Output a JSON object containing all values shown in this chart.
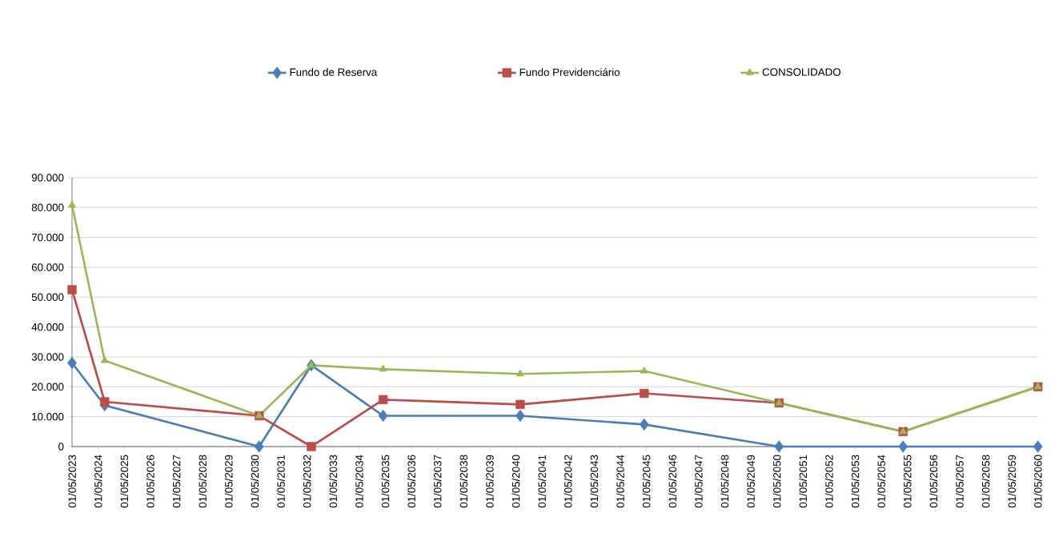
{
  "chart_data": {
    "type": "line",
    "xlim": [
      "2023-05-01",
      "2060-05-01"
    ],
    "xticks": [
      {
        "value": "2023-05-01",
        "label": "01/05/2023"
      },
      {
        "value": "2024-05-01",
        "label": "01/05/2024"
      },
      {
        "value": "2025-05-01",
        "label": "01/05/2025"
      },
      {
        "value": "2026-05-01",
        "label": "01/05/2026"
      },
      {
        "value": "2027-05-01",
        "label": "01/05/2027"
      },
      {
        "value": "2028-05-01",
        "label": "01/05/2028"
      },
      {
        "value": "2029-05-01",
        "label": "01/05/2029"
      },
      {
        "value": "2030-05-01",
        "label": "01/05/2030"
      },
      {
        "value": "2031-05-01",
        "label": "01/05/2031"
      },
      {
        "value": "2032-05-01",
        "label": "01/05/2032"
      },
      {
        "value": "2033-05-01",
        "label": "01/05/2033"
      },
      {
        "value": "2034-05-01",
        "label": "01/05/2034"
      },
      {
        "value": "2035-05-01",
        "label": "01/05/2035"
      },
      {
        "value": "2036-05-01",
        "label": "01/05/2036"
      },
      {
        "value": "2037-05-01",
        "label": "01/05/2037"
      },
      {
        "value": "2038-05-01",
        "label": "01/05/2038"
      },
      {
        "value": "2039-05-01",
        "label": "01/05/2039"
      },
      {
        "value": "2040-05-01",
        "label": "01/05/2040"
      },
      {
        "value": "2041-05-01",
        "label": "01/05/2041"
      },
      {
        "value": "2042-05-01",
        "label": "01/05/2042"
      },
      {
        "value": "2043-05-01",
        "label": "01/05/2043"
      },
      {
        "value": "2044-05-01",
        "label": "01/05/2044"
      },
      {
        "value": "2045-05-01",
        "label": "01/05/2045"
      },
      {
        "value": "2046-05-01",
        "label": "01/05/2046"
      },
      {
        "value": "2047-05-01",
        "label": "01/05/2047"
      },
      {
        "value": "2048-05-01",
        "label": "01/05/2048"
      },
      {
        "value": "2049-05-01",
        "label": "01/05/2049"
      },
      {
        "value": "2050-05-01",
        "label": "01/05/2050"
      },
      {
        "value": "2051-05-01",
        "label": "01/05/2051"
      },
      {
        "value": "2052-05-01",
        "label": "01/05/2052"
      },
      {
        "value": "2053-05-01",
        "label": "01/05/2053"
      },
      {
        "value": "2054-05-01",
        "label": "01/05/2054"
      },
      {
        "value": "2055-05-01",
        "label": "01/05/2055"
      },
      {
        "value": "2056-05-01",
        "label": "01/05/2056"
      },
      {
        "value": "2057-05-01",
        "label": "01/05/2057"
      },
      {
        "value": "2058-05-01",
        "label": "01/05/2058"
      },
      {
        "value": "2059-05-01",
        "label": "01/05/2059"
      },
      {
        "value": "2060-05-01",
        "label": "01/05/2060"
      }
    ],
    "x": [
      "2023-05-01",
      "2024-08-01",
      "2030-07-01",
      "2032-07-01",
      "2035-04-01",
      "2040-07-01",
      "2045-04-01",
      "2050-06-01",
      "2055-03-01",
      "2060-05-01"
    ],
    "ylim": [
      0,
      90000
    ],
    "yticks": [
      {
        "value": 0,
        "label": "0"
      },
      {
        "value": 10000,
        "label": "10.000"
      },
      {
        "value": 20000,
        "label": "20.000"
      },
      {
        "value": 30000,
        "label": "30.000"
      },
      {
        "value": 40000,
        "label": "40.000"
      },
      {
        "value": 50000,
        "label": "50.000"
      },
      {
        "value": 60000,
        "label": "60.000"
      },
      {
        "value": 70000,
        "label": "70.000"
      },
      {
        "value": 80000,
        "label": "80.000"
      },
      {
        "value": 90000,
        "label": "90.000"
      }
    ],
    "grid": "y",
    "legend": "top",
    "series": [
      {
        "name": "Fundo de Reserva",
        "color": "#4a7ebb",
        "marker": "diamond",
        "values": [
          28000,
          13800,
          0,
          27200,
          10300,
          10300,
          7400,
          0,
          0,
          0
        ]
      },
      {
        "name": "Fundo Previdenciário",
        "color": "#be4b48",
        "marker": "square",
        "values": [
          52500,
          15000,
          10300,
          0,
          15700,
          14100,
          17800,
          14600,
          5000,
          20000
        ]
      },
      {
        "name": "CONSOLIDADO",
        "color": "#98b954",
        "marker": "triangle",
        "values": [
          80800,
          28800,
          10300,
          27200,
          25900,
          24300,
          25300,
          14600,
          5000,
          20000
        ]
      }
    ]
  }
}
